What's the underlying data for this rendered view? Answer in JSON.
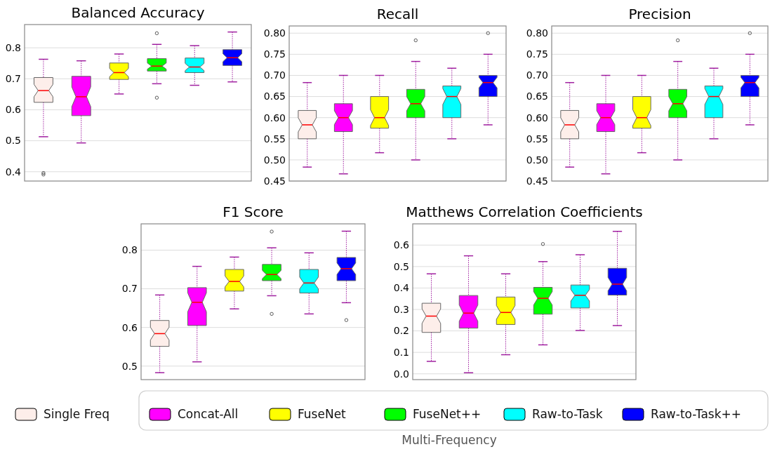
{
  "chart_data": [
    {
      "type": "box",
      "title": "Balanced Accuracy",
      "categories": [
        null,
        null,
        null,
        null,
        null,
        null
      ],
      "ylim": [
        0.37,
        0.875
      ],
      "yticks": [
        0.4,
        0.5,
        0.6,
        0.7,
        0.8
      ],
      "grid": "y",
      "tick_labels": "y",
      "series": [
        {
          "color": "#fdeeea",
          "boxes": [
            {
              "low": 0.513,
              "q1": 0.624,
              "median": 0.662,
              "q3": 0.704,
              "high": 0.763,
              "outliers": [
                0.396,
                0.391
              ]
            },
            null,
            null,
            null,
            null,
            null
          ]
        },
        {
          "color": "#ff00ff",
          "boxes": [
            null,
            {
              "low": 0.493,
              "q1": 0.581,
              "median": 0.642,
              "q3": 0.708,
              "high": 0.758
            },
            null,
            null,
            null,
            null
          ]
        },
        {
          "color": "#ffff00",
          "boxes": [
            null,
            null,
            {
              "low": 0.651,
              "q1": 0.698,
              "median": 0.72,
              "q3": 0.751,
              "high": 0.78
            },
            null,
            null,
            null
          ]
        },
        {
          "color": "#00ff00",
          "boxes": [
            null,
            null,
            null,
            {
              "low": 0.684,
              "q1": 0.725,
              "median": 0.741,
              "q3": 0.765,
              "high": 0.811,
              "outliers": [
                0.847,
                0.639
              ]
            },
            null,
            null
          ]
        },
        {
          "color": "#00ffff",
          "boxes": [
            null,
            null,
            null,
            null,
            {
              "low": 0.679,
              "q1": 0.72,
              "median": 0.738,
              "q3": 0.767,
              "high": 0.807
            },
            null
          ]
        },
        {
          "color": "#0000ff",
          "boxes": [
            null,
            null,
            null,
            null,
            null,
            {
              "low": 0.69,
              "q1": 0.743,
              "median": 0.768,
              "q3": 0.794,
              "high": 0.851
            }
          ]
        }
      ]
    },
    {
      "type": "box",
      "title": "Recall",
      "categories": [
        null,
        null,
        null,
        null,
        null,
        null
      ],
      "ylim": [
        0.45,
        0.817
      ],
      "yticks": [
        0.45,
        {
          "value": 0.5,
          "label": "0.50"
        },
        0.55,
        {
          "value": 0.6,
          "label": "0.60"
        },
        0.65,
        {
          "value": 0.7,
          "label": "0.70"
        },
        0.75,
        {
          "value": 0.8,
          "label": "0.80"
        }
      ],
      "grid": "y",
      "tick_labels": "y",
      "series": [
        {
          "color": "#fdeeea",
          "boxes": [
            {
              "low": 0.483,
              "q1": 0.55,
              "median": 0.583,
              "q3": 0.617,
              "high": 0.683
            },
            null,
            null,
            null,
            null,
            null
          ]
        },
        {
          "color": "#ff00ff",
          "boxes": [
            null,
            {
              "low": 0.467,
              "q1": 0.567,
              "median": 0.6,
              "q3": 0.633,
              "high": 0.7
            },
            null,
            null,
            null,
            null
          ]
        },
        {
          "color": "#ffff00",
          "boxes": [
            null,
            null,
            {
              "low": 0.517,
              "q1": 0.575,
              "median": 0.6,
              "q3": 0.65,
              "high": 0.7
            },
            null,
            null,
            null
          ]
        },
        {
          "color": "#00ff00",
          "boxes": [
            null,
            null,
            null,
            {
              "low": 0.5,
              "q1": 0.6,
              "median": 0.633,
              "q3": 0.667,
              "high": 0.733,
              "outliers": [
                0.783
              ]
            },
            null,
            null
          ]
        },
        {
          "color": "#00ffff",
          "boxes": [
            null,
            null,
            null,
            null,
            {
              "low": 0.55,
              "q1": 0.6,
              "median": 0.65,
              "q3": 0.675,
              "high": 0.717
            },
            null
          ]
        },
        {
          "color": "#0000ff",
          "boxes": [
            null,
            null,
            null,
            null,
            null,
            {
              "low": 0.583,
              "q1": 0.65,
              "median": 0.683,
              "q3": 0.7,
              "high": 0.75,
              "outliers": [
                0.8
              ]
            }
          ]
        }
      ]
    },
    {
      "type": "box",
      "title": "Precision",
      "categories": [
        null,
        null,
        null,
        null,
        null,
        null
      ],
      "ylim": [
        0.45,
        0.817
      ],
      "yticks": [
        0.45,
        {
          "value": 0.5,
          "label": "0.50"
        },
        0.55,
        {
          "value": 0.6,
          "label": "0.60"
        },
        0.65,
        {
          "value": 0.7,
          "label": "0.70"
        },
        0.75,
        {
          "value": 0.8,
          "label": "0.80"
        }
      ],
      "grid": "y",
      "tick_labels": "y",
      "series": [
        {
          "color": "#fdeeea",
          "boxes": [
            {
              "low": 0.483,
              "q1": 0.55,
              "median": 0.583,
              "q3": 0.617,
              "high": 0.683
            },
            null,
            null,
            null,
            null,
            null
          ]
        },
        {
          "color": "#ff00ff",
          "boxes": [
            null,
            {
              "low": 0.467,
              "q1": 0.567,
              "median": 0.6,
              "q3": 0.633,
              "high": 0.7
            },
            null,
            null,
            null,
            null
          ]
        },
        {
          "color": "#ffff00",
          "boxes": [
            null,
            null,
            {
              "low": 0.517,
              "q1": 0.575,
              "median": 0.6,
              "q3": 0.65,
              "high": 0.7
            },
            null,
            null,
            null
          ]
        },
        {
          "color": "#00ff00",
          "boxes": [
            null,
            null,
            null,
            {
              "low": 0.5,
              "q1": 0.6,
              "median": 0.633,
              "q3": 0.667,
              "high": 0.733,
              "outliers": [
                0.783
              ]
            },
            null,
            null
          ]
        },
        {
          "color": "#00ffff",
          "boxes": [
            null,
            null,
            null,
            null,
            {
              "low": 0.55,
              "q1": 0.6,
              "median": 0.65,
              "q3": 0.675,
              "high": 0.717
            },
            null
          ]
        },
        {
          "color": "#0000ff",
          "boxes": [
            null,
            null,
            null,
            null,
            null,
            {
              "low": 0.583,
              "q1": 0.65,
              "median": 0.683,
              "q3": 0.7,
              "high": 0.75,
              "outliers": [
                0.8
              ]
            }
          ]
        }
      ]
    },
    {
      "type": "box",
      "title": "F1 Score",
      "categories": [
        null,
        null,
        null,
        null,
        null,
        null
      ],
      "ylim": [
        0.465,
        0.868
      ],
      "yticks": [
        0.5,
        0.6,
        0.7,
        0.8
      ],
      "grid": "y",
      "tick_labels": "y",
      "series": [
        {
          "color": "#fdeeea",
          "boxes": [
            {
              "low": 0.483,
              "q1": 0.551,
              "median": 0.584,
              "q3": 0.618,
              "high": 0.684
            },
            null,
            null,
            null,
            null,
            null
          ]
        },
        {
          "color": "#ff00ff",
          "boxes": [
            null,
            {
              "low": 0.511,
              "q1": 0.605,
              "median": 0.665,
              "q3": 0.703,
              "high": 0.758
            },
            null,
            null,
            null,
            null
          ]
        },
        {
          "color": "#ffff00",
          "boxes": [
            null,
            null,
            {
              "low": 0.648,
              "q1": 0.694,
              "median": 0.719,
              "q3": 0.75,
              "high": 0.782
            },
            null,
            null,
            null
          ]
        },
        {
          "color": "#00ff00",
          "boxes": [
            null,
            null,
            null,
            {
              "low": 0.682,
              "q1": 0.721,
              "median": 0.737,
              "q3": 0.763,
              "high": 0.806,
              "outliers": [
                0.848,
                0.635
              ]
            },
            null,
            null
          ]
        },
        {
          "color": "#00ffff",
          "boxes": [
            null,
            null,
            null,
            null,
            {
              "low": 0.635,
              "q1": 0.689,
              "median": 0.715,
              "q3": 0.75,
              "high": 0.793
            },
            null
          ]
        },
        {
          "color": "#0000ff",
          "boxes": [
            null,
            null,
            null,
            null,
            null,
            {
              "low": 0.664,
              "q1": 0.721,
              "median": 0.752,
              "q3": 0.781,
              "high": 0.849,
              "outliers": [
                0.619
              ]
            }
          ]
        }
      ]
    },
    {
      "type": "box",
      "title": "Matthews Correlation Coefficients",
      "categories": [
        null,
        null,
        null,
        null,
        null,
        null
      ],
      "ylim": [
        -0.027,
        0.699
      ],
      "yticks": [
        {
          "value": 0,
          "label": "0.0"
        },
        0.1,
        0.2,
        0.3,
        0.4,
        0.5,
        0.6
      ],
      "grid": "y",
      "tick_labels": "y",
      "legend": "bottom",
      "legend_title": "Multi-Frequency",
      "series": [
        {
          "name": "Single Freq",
          "color": "#fdeeea",
          "boxes": [
            {
              "low": 0.058,
              "q1": 0.193,
              "median": 0.269,
              "q3": 0.329,
              "high": 0.466
            },
            null,
            null,
            null,
            null,
            null
          ]
        },
        {
          "name": "Concat-All",
          "color": "#ff00ff",
          "boxes": [
            null,
            {
              "low": 0.005,
              "q1": 0.213,
              "median": 0.283,
              "q3": 0.365,
              "high": 0.55
            },
            null,
            null,
            null,
            null
          ]
        },
        {
          "name": "FuseNet",
          "color": "#ffff00",
          "boxes": [
            null,
            null,
            {
              "low": 0.089,
              "q1": 0.23,
              "median": 0.286,
              "q3": 0.358,
              "high": 0.466
            },
            null,
            null,
            null
          ]
        },
        {
          "name": "FuseNet++",
          "color": "#00ff00",
          "boxes": [
            null,
            null,
            null,
            {
              "low": 0.135,
              "q1": 0.278,
              "median": 0.352,
              "q3": 0.403,
              "high": 0.523,
              "outliers": [
                0.605
              ]
            },
            null,
            null
          ]
        },
        {
          "name": "Raw-to-Task",
          "color": "#00ffff",
          "boxes": [
            null,
            null,
            null,
            null,
            {
              "low": 0.202,
              "q1": 0.307,
              "median": 0.366,
              "q3": 0.414,
              "high": 0.555
            },
            null
          ]
        },
        {
          "name": "Raw-to-Task++",
          "color": "#0000ff",
          "boxes": [
            null,
            null,
            null,
            null,
            null,
            {
              "low": 0.225,
              "q1": 0.367,
              "median": 0.418,
              "q3": 0.492,
              "high": 0.664
            }
          ]
        }
      ]
    }
  ]
}
